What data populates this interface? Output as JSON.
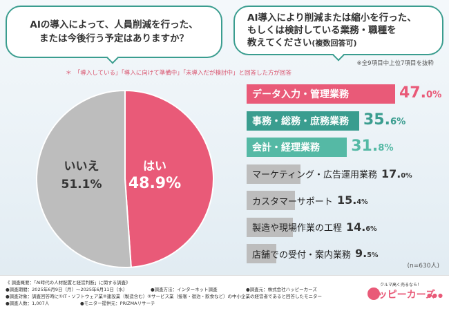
{
  "header": {
    "question1": [
      "AIの導入によって、人員削減を行った、",
      "または今後行う予定はありますか？"
    ],
    "question2": [
      "AI導入により削減または縮小を行った、",
      "もしくは検討している業務・職種を",
      "教えてください"
    ],
    "question2_note": "(複数回答可)",
    "note_top9": "※全9項目中上位7項目を抜粋",
    "note_condition": "＊　「導入している」「導入に向けて準備中」「未導入だが検討中」と回答した方が回答"
  },
  "chart_data": [
    {
      "type": "pie",
      "title": "AIの導入によって、人員削減を行った、または今後行う予定はありますか？",
      "slices": [
        {
          "label": "はい",
          "value": 48.9,
          "value_label": "48.9%",
          "color": "#e95a78"
        },
        {
          "label": "いいえ",
          "value": 51.1,
          "value_label": "51.1%",
          "color": "#bdbdbd"
        }
      ]
    },
    {
      "type": "bar",
      "orientation": "horizontal",
      "title": "AI導入により削減または縮小を行った、もしくは検討している業務・職種を教えてください(複数回答可)",
      "categories": [
        "データ入力・管理業務",
        "事務・総務・庶務業務",
        "会計・経理業務",
        "マーケティング・広告運用業務",
        "カスタマーサポート",
        "製造や現場作業の工程",
        "店舗での受付・案内業務"
      ],
      "values": [
        47.0,
        35.6,
        31.8,
        17.0,
        15.4,
        14.6,
        9.5
      ],
      "value_labels": [
        "47.0",
        "35.6",
        "31.8",
        "17.0",
        "15.4",
        "14.6",
        "9.5"
      ],
      "unit": "%",
      "xlim": [
        0,
        60
      ],
      "sample_size": "(n=630人)"
    }
  ],
  "footer": {
    "lines": [
      "《 調査概要：「AI時代の人材配置と経営判断」に関する調査》",
      "●調査期間：2025年6月9日（月）～2025年6月11日（水）",
      "●調査方法：インターネット調査",
      "●調査元：株式会社ハッピーカーズ",
      "●調査対象：調査回答時に①IT・ソフトウェア業②建設業（製造含む）③サービス業（接客・宿泊・飲食など）の中小企業の経営者であると回答したモニター",
      "●調査人数：1,007人",
      "●モニター提供元：PRIZMAリサーチ"
    ],
    "logo_tagline": "クルマ高く売るなら！",
    "logo_text": "ハッピーカーズ",
    "logo_dots": "●●●"
  },
  "colors": {
    "accent_pink": "#e95a78",
    "accent_teal": "#3a9d8f",
    "accent_green": "#55b9a5",
    "gray": "#bdbdbd"
  }
}
